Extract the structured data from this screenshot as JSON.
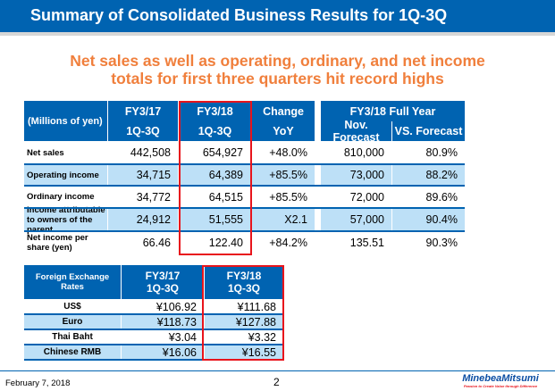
{
  "header": {
    "title": "Summary of Consolidated Business Results for 1Q-3Q"
  },
  "subtitle": {
    "line1": "Net sales as well as operating, ordinary, and net income",
    "line2": "totals for first three quarters hit record highs"
  },
  "results_table": {
    "unit_label": "(Millions of yen)",
    "col_fy17": [
      "FY3/17",
      "1Q-3Q"
    ],
    "col_fy18": [
      "FY3/18",
      "1Q-3Q"
    ],
    "col_change": [
      "Change",
      "YoY"
    ],
    "full_year_label": "FY3/18 Full Year",
    "col_forecast": "Nov. Forecast",
    "col_vs": "VS. Forecast",
    "rows": [
      {
        "label": "Net sales",
        "fy17": "442,508",
        "fy18": "654,927",
        "change": "+48.0%",
        "forecast": "810,000",
        "vs": "80.9%"
      },
      {
        "label": "Operating income",
        "fy17": "34,715",
        "fy18": "64,389",
        "change": "+85.5%",
        "forecast": "73,000",
        "vs": "88.2%"
      },
      {
        "label": "Ordinary income",
        "fy17": "34,772",
        "fy18": "64,515",
        "change": "+85.5%",
        "forecast": "72,000",
        "vs": "89.6%"
      },
      {
        "label": "Income attributable to owners of the parent",
        "fy17": "24,912",
        "fy18": "51,555",
        "change": "X2.1",
        "forecast": "57,000",
        "vs": "90.4%"
      },
      {
        "label": "Net income per share (yen)",
        "fy17": "66.46",
        "fy18": "122.40",
        "change": "+84.2%",
        "forecast": "135.51",
        "vs": "90.3%"
      }
    ]
  },
  "fx_table": {
    "label": "Foreign Exchange Rates",
    "col_fy17": "FY3/17 1Q-3Q",
    "col_fy18": "FY3/18 1Q-3Q",
    "rows": [
      {
        "label": "US$",
        "fy17": "¥106.92",
        "fy18": "¥111.68"
      },
      {
        "label": "Euro",
        "fy17": "¥118.73",
        "fy18": "¥127.88"
      },
      {
        "label": "Thai Baht",
        "fy17": "¥3.04",
        "fy18": "¥3.32"
      },
      {
        "label": "Chinese RMB",
        "fy17": "¥16.06",
        "fy18": "¥16.55"
      }
    ]
  },
  "footer": {
    "date": "February 7, 2018",
    "page": "2",
    "logo": "MinebeaMitsumi",
    "tagline": "Passion to Create Value through Difference"
  },
  "colors": {
    "brand_blue": "#0063b1",
    "accent_orange": "#f07f3c",
    "highlight_red": "#e8141c",
    "row_alt": "#bde0f7"
  }
}
